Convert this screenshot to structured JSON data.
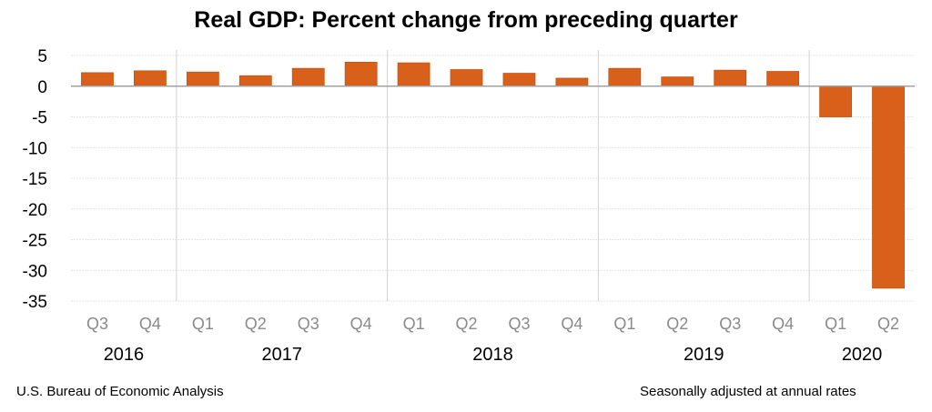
{
  "chart_data": {
    "type": "bar",
    "title": "Real GDP:  Percent change from preceding quarter",
    "categories": [
      "Q3",
      "Q4",
      "Q1",
      "Q2",
      "Q3",
      "Q4",
      "Q1",
      "Q2",
      "Q3",
      "Q4",
      "Q1",
      "Q2",
      "Q3",
      "Q4",
      "Q1",
      "Q2"
    ],
    "years": [
      {
        "label": "2016",
        "count": 2
      },
      {
        "label": "2017",
        "count": 4
      },
      {
        "label": "2018",
        "count": 4
      },
      {
        "label": "2019",
        "count": 4
      },
      {
        "label": "2020",
        "count": 2
      }
    ],
    "values": [
      2.2,
      2.5,
      2.3,
      1.7,
      2.9,
      3.9,
      3.8,
      2.7,
      2.1,
      1.3,
      2.9,
      1.5,
      2.6,
      2.4,
      -5.0,
      -32.9
    ],
    "ylim": [
      -35,
      5
    ],
    "yticks": [
      5,
      0,
      -5,
      -10,
      -15,
      -20,
      -25,
      -30,
      -35
    ],
    "xlabel": "",
    "ylabel": "",
    "grid": true,
    "bar_color": "#D9601A"
  },
  "footer": {
    "source": "U.S. Bureau of Economic Analysis",
    "note": "Seasonally adjusted at annual rates"
  }
}
